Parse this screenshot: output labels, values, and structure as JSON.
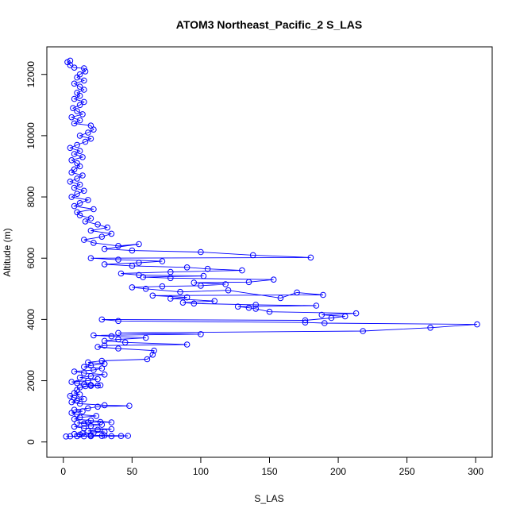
{
  "chart_data": {
    "type": "scatter",
    "title": "ATOM3 Northeast_Pacific_2 S_LAS",
    "xlabel": "S_LAS",
    "ylabel": "Altitude (m)",
    "xlim": [
      -12,
      312
    ],
    "ylim": [
      -500,
      12900
    ],
    "x_ticks": [
      0,
      50,
      100,
      150,
      200,
      250,
      300
    ],
    "y_ticks": [
      0,
      2000,
      4000,
      6000,
      8000,
      10000,
      12000
    ],
    "x_tick_labels": [
      "0",
      "50",
      "100",
      "150",
      "200",
      "250",
      "300"
    ],
    "y_tick_labels": [
      "0",
      "2000",
      "4000",
      "6000",
      "8000",
      "10000",
      "12000"
    ],
    "grid": false,
    "legend": "none",
    "marker": "open-circle",
    "connect_points": true,
    "series": [
      {
        "color": "#0000ff",
        "points": [
          [
            2,
            180
          ],
          [
            5,
            185
          ],
          [
            10,
            190
          ],
          [
            15,
            185
          ],
          [
            20,
            190
          ],
          [
            28,
            195
          ],
          [
            35,
            190
          ],
          [
            42,
            195
          ],
          [
            47,
            200
          ],
          [
            30,
            210
          ],
          [
            20,
            220
          ],
          [
            12,
            240
          ],
          [
            8,
            260
          ],
          [
            14,
            280
          ],
          [
            22,
            300
          ],
          [
            30,
            330
          ],
          [
            18,
            360
          ],
          [
            25,
            400
          ],
          [
            35,
            420
          ],
          [
            15,
            450
          ],
          [
            8,
            500
          ],
          [
            20,
            520
          ],
          [
            28,
            560
          ],
          [
            15,
            600
          ],
          [
            10,
            620
          ],
          [
            18,
            640
          ],
          [
            27,
            650
          ],
          [
            35,
            640
          ],
          [
            20,
            700
          ],
          [
            8,
            750
          ],
          [
            12,
            800
          ],
          [
            24,
            850
          ],
          [
            10,
            900
          ],
          [
            6,
            950
          ],
          [
            14,
            1000
          ],
          [
            8,
            1050
          ],
          [
            18,
            1100
          ],
          [
            25,
            1150
          ],
          [
            48,
            1180
          ],
          [
            30,
            1200
          ],
          [
            12,
            1250
          ],
          [
            6,
            1300
          ],
          [
            10,
            1350
          ],
          [
            15,
            1400
          ],
          [
            8,
            1450
          ],
          [
            5,
            1500
          ],
          [
            12,
            1550
          ],
          [
            8,
            1600
          ],
          [
            10,
            1700
          ],
          [
            12,
            1780
          ],
          [
            16,
            1820
          ],
          [
            20,
            1830
          ],
          [
            25,
            1840
          ],
          [
            27,
            1850
          ],
          [
            20,
            1860
          ],
          [
            15,
            1880
          ],
          [
            10,
            1920
          ],
          [
            6,
            1960
          ],
          [
            18,
            2000
          ],
          [
            25,
            2050
          ],
          [
            12,
            2100
          ],
          [
            20,
            2150
          ],
          [
            30,
            2200
          ],
          [
            15,
            2250
          ],
          [
            8,
            2300
          ],
          [
            22,
            2350
          ],
          [
            28,
            2400
          ],
          [
            15,
            2450
          ],
          [
            20,
            2500
          ],
          [
            30,
            2550
          ],
          [
            18,
            2600
          ],
          [
            28,
            2650
          ],
          [
            61,
            2700
          ],
          [
            65,
            2850
          ],
          [
            66,
            2980
          ],
          [
            40,
            3050
          ],
          [
            25,
            3100
          ],
          [
            30,
            3150
          ],
          [
            90,
            3180
          ],
          [
            45,
            3250
          ],
          [
            30,
            3300
          ],
          [
            40,
            3350
          ],
          [
            60,
            3400
          ],
          [
            35,
            3450
          ],
          [
            22,
            3480
          ],
          [
            100,
            3520
          ],
          [
            40,
            3560
          ],
          [
            218,
            3620
          ],
          [
            267,
            3730
          ],
          [
            301,
            3840
          ],
          [
            190,
            3880
          ],
          [
            176,
            3900
          ],
          [
            40,
            3950
          ],
          [
            28,
            4000
          ],
          [
            176,
            3970
          ],
          [
            195,
            4050
          ],
          [
            205,
            4100
          ],
          [
            188,
            4150
          ],
          [
            213,
            4200
          ],
          [
            150,
            4250
          ],
          [
            140,
            4350
          ],
          [
            135,
            4380
          ],
          [
            127,
            4420
          ],
          [
            184,
            4450
          ],
          [
            140,
            4480
          ],
          [
            95,
            4520
          ],
          [
            87,
            4550
          ],
          [
            110,
            4600
          ],
          [
            78,
            4680
          ],
          [
            90,
            4720
          ],
          [
            65,
            4780
          ],
          [
            189,
            4800
          ],
          [
            170,
            4880
          ],
          [
            158,
            4700
          ],
          [
            120,
            4950
          ],
          [
            85,
            4900
          ],
          [
            60,
            5000
          ],
          [
            50,
            5050
          ],
          [
            72,
            5080
          ],
          [
            100,
            5100
          ],
          [
            118,
            5150
          ],
          [
            95,
            5200
          ],
          [
            135,
            5220
          ],
          [
            153,
            5300
          ],
          [
            78,
            5350
          ],
          [
            58,
            5380
          ],
          [
            102,
            5420
          ],
          [
            55,
            5450
          ],
          [
            42,
            5500
          ],
          [
            78,
            5550
          ],
          [
            130,
            5600
          ],
          [
            105,
            5650
          ],
          [
            90,
            5700
          ],
          [
            50,
            5750
          ],
          [
            30,
            5800
          ],
          [
            55,
            5850
          ],
          [
            72,
            5900
          ],
          [
            40,
            5950
          ],
          [
            20,
            6000
          ],
          [
            180,
            6020
          ],
          [
            138,
            6100
          ],
          [
            100,
            6200
          ],
          [
            50,
            6250
          ],
          [
            30,
            6300
          ],
          [
            55,
            6460
          ],
          [
            40,
            6400
          ],
          [
            22,
            6500
          ],
          [
            15,
            6600
          ],
          [
            28,
            6700
          ],
          [
            35,
            6800
          ],
          [
            20,
            6900
          ],
          [
            32,
            7000
          ],
          [
            25,
            7100
          ],
          [
            16,
            7200
          ],
          [
            20,
            7300
          ],
          [
            12,
            7400
          ],
          [
            10,
            7500
          ],
          [
            22,
            7600
          ],
          [
            8,
            7700
          ],
          [
            12,
            7800
          ],
          [
            18,
            7900
          ],
          [
            6,
            8000
          ],
          [
            10,
            8100
          ],
          [
            15,
            8200
          ],
          [
            8,
            8300
          ],
          [
            12,
            8400
          ],
          [
            5,
            8500
          ],
          [
            10,
            8600
          ],
          [
            14,
            8700
          ],
          [
            6,
            8800
          ],
          [
            8,
            8900
          ],
          [
            12,
            9000
          ],
          [
            10,
            9100
          ],
          [
            6,
            9200
          ],
          [
            14,
            9300
          ],
          [
            8,
            9400
          ],
          [
            12,
            9500
          ],
          [
            5,
            9600
          ],
          [
            10,
            9700
          ],
          [
            16,
            9800
          ],
          [
            20,
            9900
          ],
          [
            12,
            10000
          ],
          [
            18,
            10100
          ],
          [
            22,
            10200
          ],
          [
            20,
            10330
          ],
          [
            8,
            10400
          ],
          [
            12,
            10500
          ],
          [
            6,
            10600
          ],
          [
            14,
            10700
          ],
          [
            10,
            10800
          ],
          [
            7,
            10900
          ],
          [
            12,
            11000
          ],
          [
            15,
            11100
          ],
          [
            8,
            11200
          ],
          [
            12,
            11300
          ],
          [
            10,
            11400
          ],
          [
            15,
            11500
          ],
          [
            12,
            11600
          ],
          [
            8,
            11700
          ],
          [
            15,
            11800
          ],
          [
            10,
            11900
          ],
          [
            12,
            12000
          ],
          [
            16,
            12100
          ],
          [
            15,
            12200
          ],
          [
            8,
            12220
          ],
          [
            5,
            12300
          ],
          [
            3,
            12400
          ],
          [
            5,
            12450
          ]
        ]
      }
    ]
  }
}
